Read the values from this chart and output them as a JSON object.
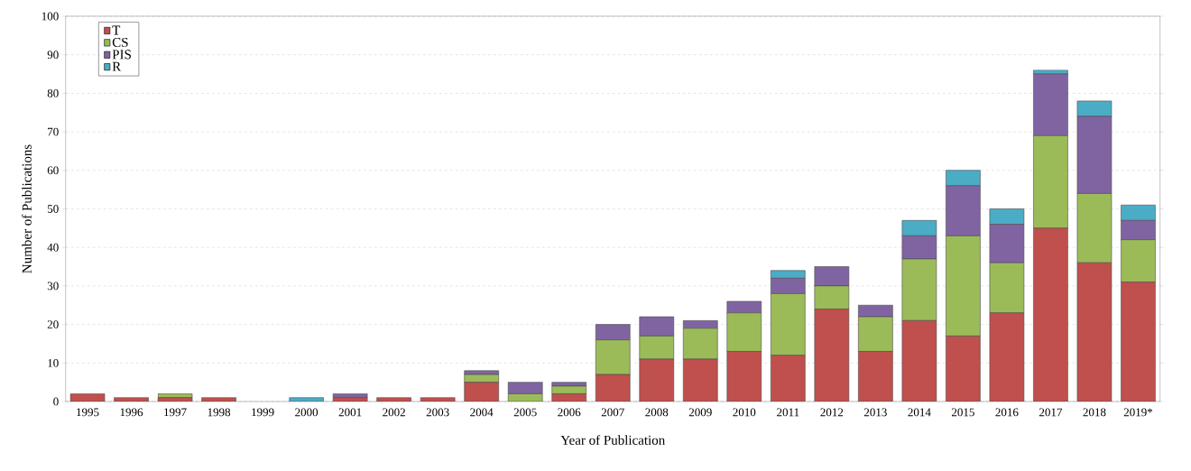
{
  "chart_data": {
    "type": "bar",
    "stacked": true,
    "xlabel": "Year of Publication",
    "ylabel": "Number of Publications",
    "categories": [
      "1995",
      "1996",
      "1997",
      "1998",
      "1999",
      "2000",
      "2001",
      "2002",
      "2003",
      "2004",
      "2005",
      "2006",
      "2007",
      "2008",
      "2009",
      "2010",
      "2011",
      "2012",
      "2013",
      "2014",
      "2015",
      "2016",
      "2017",
      "2018",
      "2019*"
    ],
    "series": [
      {
        "name": "T",
        "color": "#c0504d",
        "values": [
          2,
          1,
          1,
          1,
          0,
          0,
          1,
          1,
          1,
          5,
          0,
          2,
          7,
          11,
          11,
          13,
          12,
          24,
          13,
          21,
          17,
          23,
          45,
          36,
          31
        ]
      },
      {
        "name": "CS",
        "color": "#9bbb59",
        "values": [
          0,
          0,
          1,
          0,
          0,
          0,
          0,
          0,
          0,
          2,
          2,
          2,
          9,
          6,
          8,
          10,
          16,
          6,
          9,
          16,
          26,
          13,
          24,
          18,
          11
        ]
      },
      {
        "name": "PIS",
        "color": "#8064a2",
        "values": [
          0,
          0,
          0,
          0,
          0,
          0,
          1,
          0,
          0,
          1,
          3,
          1,
          4,
          5,
          2,
          3,
          4,
          5,
          3,
          6,
          13,
          10,
          16,
          20,
          5
        ]
      },
      {
        "name": "R",
        "color": "#4bacc6",
        "values": [
          0,
          0,
          0,
          0,
          0,
          1,
          0,
          0,
          0,
          0,
          0,
          0,
          0,
          0,
          0,
          0,
          2,
          0,
          0,
          4,
          4,
          4,
          1,
          4,
          4
        ]
      }
    ],
    "ylim": [
      0,
      100
    ],
    "yticks": [
      0,
      10,
      20,
      30,
      40,
      50,
      60,
      70,
      80,
      90,
      100
    ],
    "grid": "y",
    "legend": "top left"
  }
}
